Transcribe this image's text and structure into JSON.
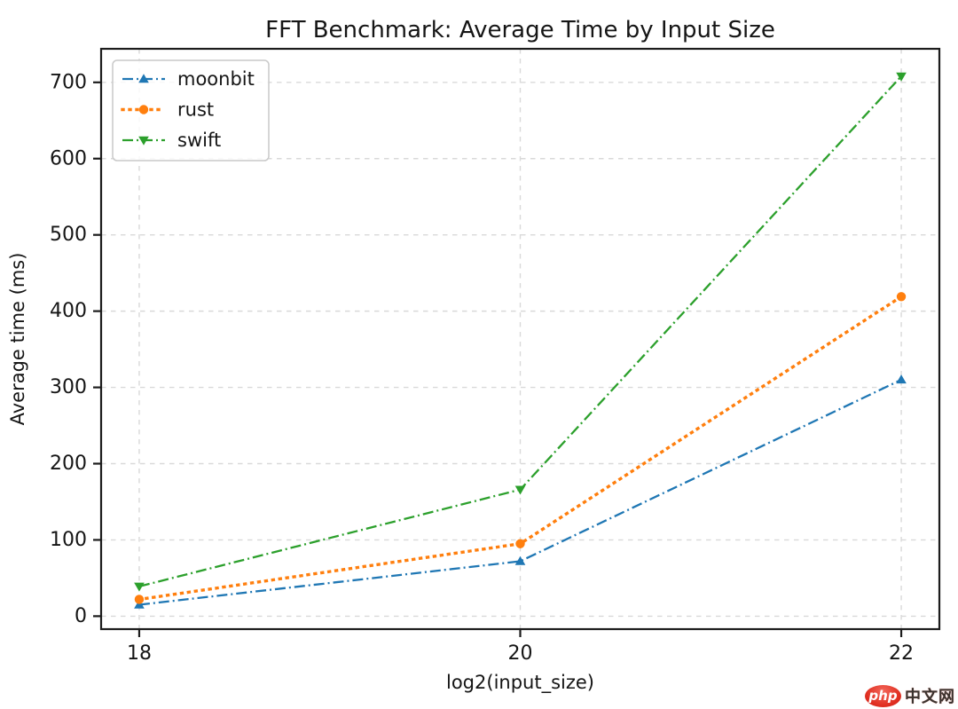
{
  "chart_data": {
    "type": "line",
    "title": "FFT Benchmark: Average Time by Input Size",
    "xlabel": "log2(input_size)",
    "ylabel": "Average time (ms)",
    "x": [
      18,
      20,
      22
    ],
    "series": [
      {
        "name": "moonbit",
        "values": [
          15,
          72,
          310
        ],
        "color": "#1f77b4",
        "linestyle": "dashdot",
        "marker": "triangle-up"
      },
      {
        "name": "rust",
        "values": [
          22,
          95,
          419
        ],
        "color": "#ff7f0e",
        "linestyle": "dotted",
        "marker": "circle"
      },
      {
        "name": "swift",
        "values": [
          39,
          166,
          708
        ],
        "color": "#2ca02c",
        "linestyle": "dashdot",
        "marker": "triangle-down"
      }
    ],
    "xticks": [
      18,
      20,
      22
    ],
    "yticks": [
      0,
      100,
      200,
      300,
      400,
      500,
      600,
      700
    ],
    "xlim": [
      17.8,
      22.2
    ],
    "ylim": [
      -17,
      744
    ],
    "grid": true,
    "grid_color": "#d9d9d9",
    "axis_color": "#1c1c1c",
    "legend_position": "upper-left"
  },
  "watermark": {
    "badge_text": "php",
    "site_text": "中文网"
  }
}
